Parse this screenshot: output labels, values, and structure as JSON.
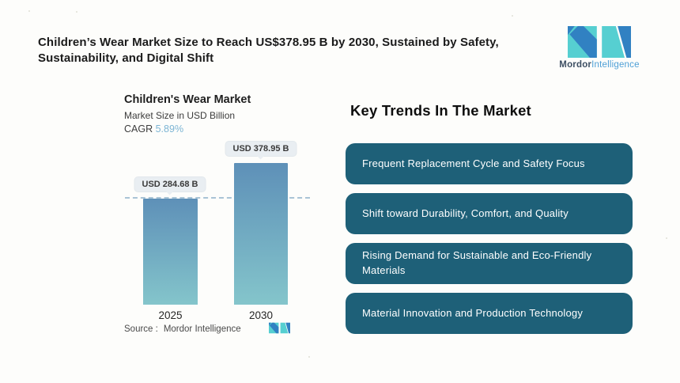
{
  "page": {
    "title": "Children’s Wear Market Size to Reach US$378.95 B by 2030, Sustained by Safety, Sustainability, and Digital Shift"
  },
  "brand": {
    "name_bold": "Mordor",
    "name_light": "Intelligence",
    "colors": {
      "teal": "#56cfd1",
      "blue": "#3181c2",
      "navy": "#3d4f63",
      "light_blue": "#4d9fd6"
    }
  },
  "chart": {
    "title": "Children's Wear Market",
    "subtitle": "Market Size in USD Billion",
    "cagr_label": "CAGR",
    "cagr_value": "5.89%",
    "source_label": "Source :",
    "source_value": "Mordor Intelligence"
  },
  "chart_data": {
    "type": "bar",
    "title": "Children's Wear Market",
    "subtitle": "Market Size in USD Billion",
    "unit": "USD Billion",
    "cagr": "5.89%",
    "categories": [
      "2025",
      "2030"
    ],
    "values": [
      284.68,
      378.95
    ],
    "value_labels": [
      "USD 284.68 B",
      "USD 378.95 B"
    ],
    "reference_line": 284.68,
    "ylim": [
      0,
      378.95
    ],
    "grid": "off",
    "legend": "none",
    "bar_gradient": [
      "#5e90b8",
      "#84c5cb"
    ],
    "reference_line_color": "#a9c4d6"
  },
  "trends": {
    "heading": "Key Trends In The Market",
    "box_color": "#1e6078",
    "items": [
      "Frequent Replacement Cycle and Safety Focus",
      "Shift toward Durability, Comfort, and Quality",
      "Rising Demand for Sustainable and Eco-Friendly Materials",
      "Material Innovation and Production Technology"
    ]
  }
}
